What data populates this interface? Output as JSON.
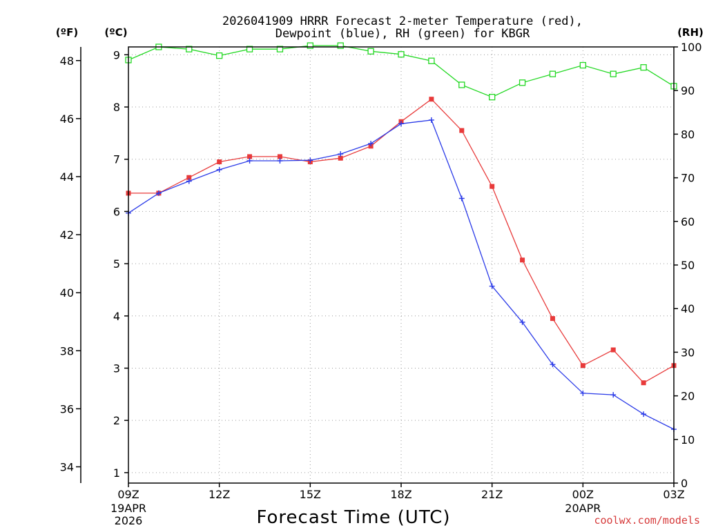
{
  "chart_data": {
    "type": "line",
    "title": "2026041909 HRRR Forecast 2-meter Temperature (red),",
    "subtitle": "Dewpoint (blue), RH (green) for KBGR",
    "xlabel": "Forecast Time (UTC)",
    "credit": "coolwx.com/models",
    "units": {
      "fahrenheit": "(ºF)",
      "celsius": "(ºC)",
      "rh": "(RH)"
    },
    "x_hours": [
      0,
      1,
      2,
      3,
      4,
      5,
      6,
      7,
      8,
      9,
      10,
      11,
      12,
      13,
      14,
      15,
      16,
      17,
      18
    ],
    "x_ticks": [
      {
        "hour": 0,
        "label": "09Z",
        "sub1": "19APR",
        "sub2": "2026"
      },
      {
        "hour": 3,
        "label": "12Z"
      },
      {
        "hour": 6,
        "label": "15Z"
      },
      {
        "hour": 9,
        "label": "18Z"
      },
      {
        "hour": 12,
        "label": "21Z"
      },
      {
        "hour": 15,
        "label": "00Z",
        "sub1": "20APR"
      },
      {
        "hour": 18,
        "label": "03Z"
      }
    ],
    "celsius_axis": {
      "range": [
        0.8,
        9.15
      ],
      "ticks": [
        "1",
        "2",
        "3",
        "4",
        "5",
        "6",
        "7",
        "8",
        "9"
      ]
    },
    "fahrenheit_axis": {
      "ticks": [
        "34",
        "36",
        "38",
        "40",
        "42",
        "44",
        "46",
        "48"
      ]
    },
    "rh_axis": {
      "range": [
        0,
        100
      ],
      "ticks": [
        "0",
        "10",
        "20",
        "30",
        "40",
        "50",
        "60",
        "70",
        "80",
        "90",
        "100"
      ]
    },
    "series": [
      {
        "name": "Temperature",
        "unit": "C",
        "color": "#e83a3a",
        "marker": "filled-square",
        "values": [
          6.35,
          6.35,
          6.65,
          6.95,
          7.05,
          7.05,
          6.95,
          7.02,
          7.25,
          7.72,
          8.15,
          7.55,
          6.48,
          5.07,
          3.95,
          3.05,
          3.35,
          2.72,
          3.05
        ]
      },
      {
        "name": "Dewpoint",
        "unit": "C",
        "color": "#2a3ae8",
        "marker": "plus",
        "values": [
          5.97,
          6.35,
          6.58,
          6.8,
          6.97,
          6.97,
          6.98,
          7.1,
          7.3,
          7.68,
          7.75,
          6.25,
          4.57,
          3.88,
          3.07,
          2.52,
          2.49,
          2.12,
          1.83
        ]
      },
      {
        "name": "RH",
        "unit": "%",
        "color": "#22d822",
        "marker": "open-square",
        "values": [
          97,
          100,
          99.5,
          98,
          99.5,
          99.5,
          100.3,
          100.3,
          99,
          98.3,
          96.8,
          91.3,
          88.5,
          91.8,
          93.8,
          95.8,
          93.8,
          95.3,
          91
        ]
      }
    ]
  }
}
